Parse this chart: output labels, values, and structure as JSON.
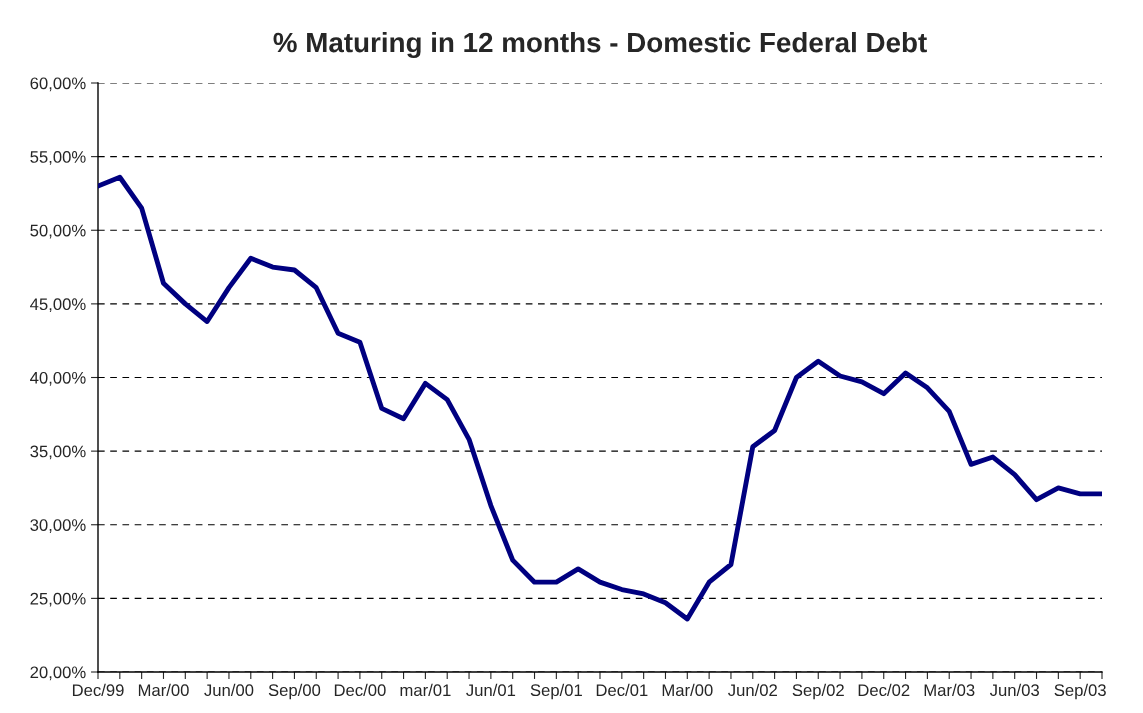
{
  "chart_data": {
    "type": "line",
    "title": "% Maturing in 12 months - Domestic Federal Debt",
    "categories": [
      "Dec/99",
      null,
      null,
      "Mar/00",
      null,
      null,
      "Jun/00",
      null,
      null,
      "Sep/00",
      null,
      null,
      "Dec/00",
      null,
      null,
      "mar/01",
      null,
      null,
      "Jun/01",
      null,
      null,
      "Sep/01",
      null,
      null,
      "Dec/01",
      null,
      null,
      "Mar/00",
      null,
      null,
      "Jun/02",
      null,
      null,
      "Sep/02",
      null,
      null,
      "Dec/02",
      null,
      null,
      "Mar/03",
      null,
      null,
      "Jun/03",
      null,
      null,
      "Sep/03",
      null
    ],
    "series": [
      {
        "color": "#000080",
        "values": [
          53.0,
          53.6,
          51.5,
          46.4,
          45.0,
          43.8,
          46.1,
          48.1,
          47.5,
          47.3,
          46.1,
          43.0,
          42.4,
          37.9,
          37.2,
          39.6,
          38.5,
          35.8,
          31.3,
          27.6,
          26.1,
          26.1,
          27.0,
          26.1,
          25.6,
          25.3,
          24.7,
          23.6,
          26.1,
          27.3,
          35.3,
          36.4,
          40.0,
          41.1,
          40.1,
          39.7,
          38.9,
          40.3,
          39.3,
          37.7,
          34.1,
          34.6,
          33.4,
          31.7,
          32.5,
          32.1,
          32.1
        ]
      }
    ],
    "ylim": [
      20,
      60
    ],
    "yticks": [
      {
        "value": 20,
        "label": "20,00%"
      },
      {
        "value": 25,
        "label": "25,00%"
      },
      {
        "value": 30,
        "label": "30,00%"
      },
      {
        "value": 35,
        "label": "35,00%"
      },
      {
        "value": 40,
        "label": "40,00%"
      },
      {
        "value": 45,
        "label": "45,00%"
      },
      {
        "value": 50,
        "label": "50,00%"
      },
      {
        "value": 55,
        "label": "55,00%"
      },
      {
        "value": 60,
        "label": "60,00%"
      }
    ],
    "grid": "y",
    "line_style": "solid",
    "marker": "none",
    "legend": false
  }
}
